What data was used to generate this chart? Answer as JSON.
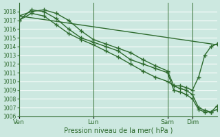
{
  "background_color": "#cce8e0",
  "plot_bg_color": "#cce8e0",
  "line_color": "#2d6a2d",
  "grid_color": "#b0d8cc",
  "tick_color": "#2d6a2d",
  "xlabel": "Pression niveau de la mer( hPa )",
  "ylim": [
    1006,
    1019
  ],
  "yticks": [
    1006,
    1007,
    1008,
    1009,
    1010,
    1011,
    1012,
    1013,
    1014,
    1015,
    1016,
    1017,
    1018
  ],
  "xlim": [
    0,
    192
  ],
  "day_ticks": [
    0,
    72,
    144,
    168
  ],
  "day_labels": [
    "Ven",
    "Lun",
    "Sam",
    "Dim"
  ],
  "vlines": [
    0,
    72,
    144,
    168
  ],
  "series": [
    {
      "x": [
        0,
        192
      ],
      "y": [
        1017.5,
        1014.2
      ],
      "marker": false
    },
    {
      "x": [
        0,
        12,
        24,
        36,
        48,
        60,
        72,
        84,
        96,
        108,
        120,
        132,
        144,
        150,
        156,
        162,
        168,
        174,
        180,
        186,
        192
      ],
      "y": [
        1017.5,
        1018.0,
        1018.2,
        1017.8,
        1017.0,
        1015.8,
        1014.8,
        1014.3,
        1013.8,
        1013.3,
        1012.5,
        1011.8,
        1011.2,
        1009.5,
        1009.2,
        1009.0,
        1008.5,
        1007.0,
        1006.7,
        1006.5,
        1007.2
      ],
      "marker": true
    },
    {
      "x": [
        0,
        12,
        24,
        36,
        48,
        60,
        72,
        84,
        96,
        108,
        120,
        132,
        144,
        150,
        156,
        162,
        168,
        174,
        180,
        186,
        192
      ],
      "y": [
        1017.0,
        1018.2,
        1018.0,
        1017.2,
        1016.0,
        1015.0,
        1014.5,
        1014.0,
        1013.5,
        1012.5,
        1012.0,
        1011.5,
        1011.0,
        1009.0,
        1008.8,
        1008.5,
        1008.0,
        1006.8,
        1006.5,
        1006.5,
        1006.8
      ],
      "marker": true
    },
    {
      "x": [
        0,
        12,
        24,
        36,
        48,
        60,
        72,
        84,
        96,
        108,
        120,
        132,
        144,
        150,
        156,
        162,
        168,
        174,
        180,
        186,
        192
      ],
      "y": [
        1017.0,
        1017.8,
        1017.5,
        1016.5,
        1015.5,
        1014.8,
        1014.2,
        1013.5,
        1012.8,
        1012.0,
        1011.2,
        1010.5,
        1010.0,
        1009.5,
        1009.5,
        1009.3,
        1009.0,
        1010.5,
        1013.0,
        1014.0,
        1014.3
      ],
      "marker": true
    }
  ],
  "marker": "+",
  "markersize": 4,
  "linewidth": 1.0,
  "markeredgewidth": 1.0
}
